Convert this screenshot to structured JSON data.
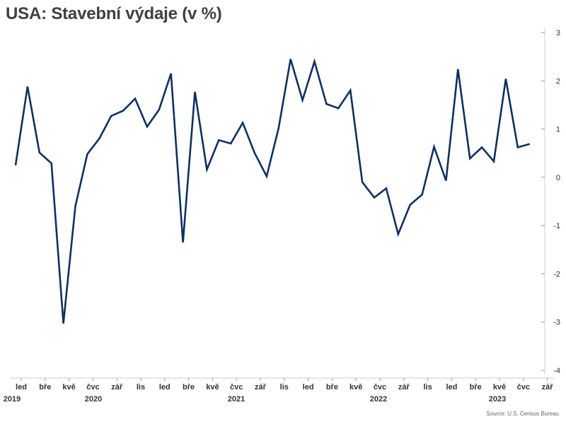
{
  "chart_data": {
    "type": "line",
    "title": "USA: Stavební výdaje (v %)",
    "source": "Source: U.S. Census Bureau",
    "ylim": [
      -4,
      3
    ],
    "y_ticks": [
      "3",
      "2",
      "1",
      "0",
      "-1",
      "-2",
      "-3",
      "-4"
    ],
    "grid": false,
    "x_month_labels": [
      "led",
      "bře",
      "kvě",
      "čvc",
      "zář",
      "lis",
      "led",
      "bře",
      "kvě",
      "čvc",
      "zář",
      "lis",
      "led",
      "bře",
      "kvě",
      "čvc",
      "zář",
      "lis",
      "led",
      "bře",
      "kvě",
      "čvc",
      "zář"
    ],
    "x_year_labels": [
      "2019",
      "2020",
      "2021",
      "2022",
      "2023"
    ],
    "line_color": "#0d3160",
    "series": [
      {
        "values": [
          0.25,
          1.88,
          0.51,
          0.29,
          -3.03,
          -0.6,
          0.48,
          0.8,
          1.27,
          1.38,
          1.63,
          1.05,
          1.4,
          2.15,
          -1.35,
          1.77,
          0.16,
          0.77,
          0.7,
          1.13,
          0.5,
          0.02,
          1.02,
          2.45,
          1.6,
          2.4,
          1.52,
          1.43,
          1.8,
          -0.1,
          -0.42,
          -0.23,
          -1.18,
          -0.57,
          -0.36,
          0.63,
          -0.07,
          2.24,
          0.39,
          0.62,
          0.33,
          2.04,
          0.62,
          0.69
        ]
      }
    ]
  }
}
